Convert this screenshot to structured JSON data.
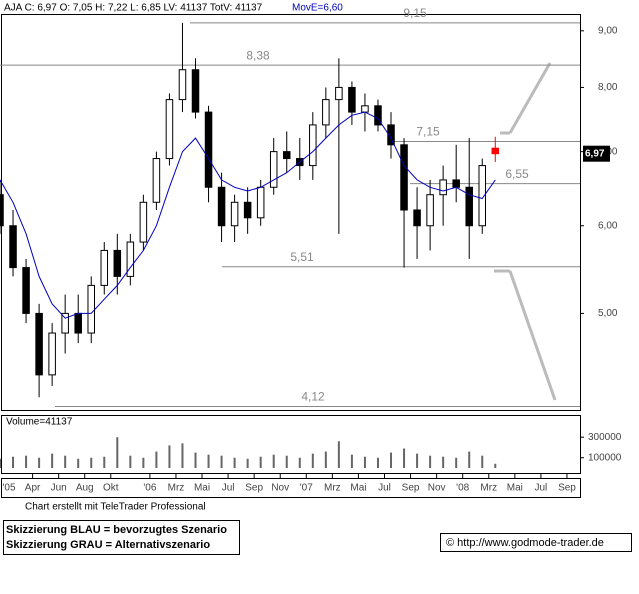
{
  "chart_data": {
    "type": "candlestick",
    "header": "AJA C: 6,97 O: 7,05 H: 7,22 L: 6,85 LV: 41137 TotV: 41137",
    "ma_label": "MovE=6,60",
    "last_price_label": "6,97",
    "x": [
      0.5,
      1.5,
      2.5,
      3.5,
      4.5,
      5.5,
      6.5,
      7.5,
      8.5,
      9.5,
      10.5,
      11.5,
      12.5,
      13.5,
      14.5,
      15.5,
      16.5,
      17.5,
      18.5,
      19.5,
      20.5,
      21.5,
      22.5,
      23.5,
      24.5,
      25.5,
      26.5,
      27.5,
      28.5,
      29.5,
      30.5,
      31.5,
      32.5,
      33.5,
      34.5,
      35.5,
      36.5,
      37.5,
      38.5
    ],
    "open": [
      6.4,
      6.0,
      5.5,
      5.0,
      4.4,
      4.8,
      5.0,
      4.8,
      5.3,
      5.7,
      5.4,
      5.8,
      6.3,
      6.9,
      7.8,
      8.3,
      7.6,
      6.5,
      6.0,
      6.3,
      6.1,
      6.5,
      7.0,
      6.9,
      6.8,
      7.4,
      7.8,
      8.0,
      7.6,
      7.7,
      7.4,
      7.1,
      6.2,
      6.0,
      6.4,
      6.6,
      6.5,
      6.0,
      7.05
    ],
    "high": [
      6.6,
      6.2,
      5.6,
      5.1,
      4.9,
      5.2,
      5.2,
      5.4,
      5.8,
      5.9,
      5.9,
      6.4,
      7.0,
      7.9,
      9.15,
      8.5,
      7.7,
      6.7,
      6.4,
      6.5,
      6.6,
      7.2,
      7.3,
      7.2,
      7.6,
      8.0,
      8.5,
      8.1,
      7.9,
      7.8,
      7.6,
      7.2,
      6.5,
      6.6,
      6.8,
      7.1,
      7.2,
      6.9,
      7.22
    ],
    "low": [
      5.9,
      5.4,
      4.9,
      4.2,
      4.3,
      4.6,
      4.7,
      4.7,
      5.2,
      5.2,
      5.3,
      5.7,
      6.2,
      6.8,
      7.6,
      7.5,
      6.3,
      5.8,
      5.8,
      5.9,
      6.0,
      6.4,
      6.7,
      6.6,
      6.6,
      7.2,
      5.9,
      7.4,
      7.3,
      7.3,
      6.9,
      5.5,
      5.6,
      5.7,
      6.0,
      6.3,
      5.6,
      5.9,
      6.85
    ],
    "close": [
      6.0,
      5.5,
      5.0,
      4.4,
      4.8,
      5.0,
      4.8,
      5.3,
      5.7,
      5.4,
      5.8,
      6.3,
      6.9,
      7.8,
      8.3,
      7.6,
      6.5,
      6.0,
      6.3,
      6.1,
      6.5,
      7.0,
      6.9,
      6.8,
      7.4,
      7.8,
      8.0,
      7.6,
      7.7,
      7.4,
      7.1,
      6.2,
      6.0,
      6.4,
      6.6,
      6.5,
      6.0,
      6.8,
      6.97
    ],
    "ma": [
      6.6,
      6.3,
      5.9,
      5.4,
      5.1,
      4.95,
      5.0,
      5.0,
      5.15,
      5.3,
      5.5,
      5.7,
      6.0,
      6.5,
      7.0,
      7.2,
      6.9,
      6.6,
      6.5,
      6.45,
      6.5,
      6.6,
      6.7,
      6.85,
      7.0,
      7.2,
      7.4,
      7.55,
      7.6,
      7.5,
      7.2,
      6.8,
      6.6,
      6.5,
      6.45,
      6.5,
      6.4,
      6.35,
      6.6
    ],
    "up_color": "#ffffff",
    "down_color": "#000000",
    "last_color": "#ff0000",
    "ma_color": "#0000c0",
    "log_scale": true,
    "xlim": [
      0.5,
      45
    ],
    "xticks": [
      {
        "value": 0,
        "label": "'05"
      },
      {
        "value": 3,
        "label": "Apr"
      },
      {
        "value": 5,
        "label": "Jun"
      },
      {
        "value": 7,
        "label": "Aug"
      },
      {
        "value": 9,
        "label": "Okt"
      },
      {
        "value": 12,
        "label": "'06"
      },
      {
        "value": 14,
        "label": "Mrz"
      },
      {
        "value": 16,
        "label": "Mai"
      },
      {
        "value": 18,
        "label": "Jul"
      },
      {
        "value": 20,
        "label": "Sep"
      },
      {
        "value": 22,
        "label": "Nov"
      },
      {
        "value": 24,
        "label": "'07"
      },
      {
        "value": 26,
        "label": "Mrz"
      },
      {
        "value": 28,
        "label": "Mai"
      },
      {
        "value": 30,
        "label": "Jul"
      },
      {
        "value": 32,
        "label": "Sep"
      },
      {
        "value": 34,
        "label": "Nov"
      },
      {
        "value": 36,
        "label": "'08"
      },
      {
        "value": 38,
        "label": "Mrz"
      },
      {
        "value": 40,
        "label": "Mai"
      },
      {
        "value": 42,
        "label": "Jul"
      },
      {
        "value": 44,
        "label": "Sep"
      }
    ],
    "ylim": [
      4.09,
      9.32
    ],
    "yticks": [
      {
        "value": 9,
        "label": "9,00"
      },
      {
        "value": 8,
        "label": "8,00"
      },
      {
        "value": 7,
        "label": "7,00"
      },
      {
        "value": 6,
        "label": "6,00"
      },
      {
        "value": 5,
        "label": "5,00"
      }
    ],
    "levels": {
      "values": [
        9.15,
        8.38,
        7.15,
        6.55,
        5.51,
        4.12
      ],
      "value_labels": [
        "9,15",
        "8,38",
        "7,15",
        "6,55",
        "5,51",
        "4,12"
      ]
    },
    "volume": {
      "label": "Volume=41137",
      "values": [
        90000,
        110000,
        120000,
        100000,
        140000,
        120000,
        90000,
        100000,
        110000,
        300000,
        120000,
        100000,
        160000,
        220000,
        240000,
        150000,
        130000,
        120000,
        100000,
        90000,
        110000,
        130000,
        120000,
        100000,
        140000,
        160000,
        260000,
        130000,
        110000,
        100000,
        150000,
        190000,
        140000,
        120000,
        110000,
        100000,
        160000,
        120000,
        41137
      ],
      "ylim": [
        0,
        370000
      ],
      "yticks": [
        {
          "value": 300000,
          "label": "300000"
        },
        {
          "value": 100000,
          "label": "100000"
        }
      ]
    },
    "footer": {
      "credit": "Chart erstellt mit TeleTrader Professional",
      "legend": [
        "Skizzierung BLAU = bevorzugtes Szenario",
        "Skizzierung GRAU = Alternativszenario"
      ],
      "source": "© http://www.godmode-trader.de"
    }
  }
}
